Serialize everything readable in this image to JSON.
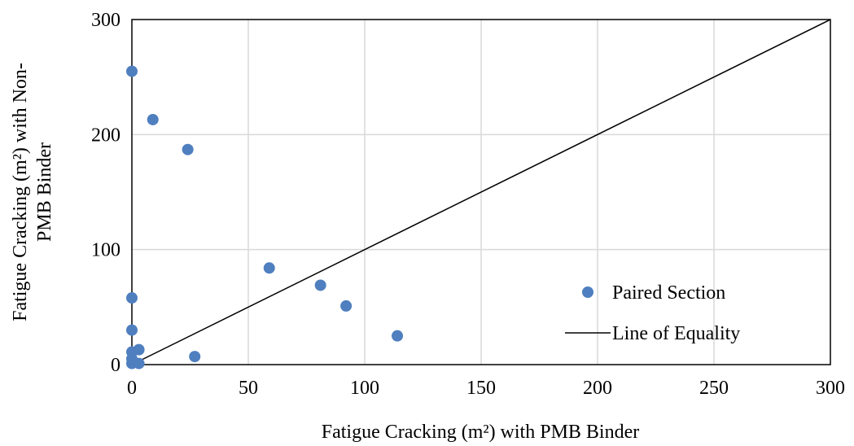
{
  "chart_data": {
    "type": "scatter",
    "xlabel": "Fatigue Cracking (m²) with PMB Binder",
    "ylabel_lines": [
      "Fatigue Cracking (m²) with Non-",
      "PMB Binder"
    ],
    "xlim": [
      0,
      300
    ],
    "ylim": [
      0,
      300
    ],
    "x_ticks": [
      0,
      50,
      100,
      150,
      200,
      250,
      300
    ],
    "y_ticks": [
      0,
      100,
      200,
      300
    ],
    "grid": true,
    "legend_position": "right",
    "series": [
      {
        "name": "Paired Section",
        "kind": "scatter",
        "color": "#4f7fbf",
        "points": [
          {
            "x": 0,
            "y": 255
          },
          {
            "x": 9,
            "y": 213
          },
          {
            "x": 24,
            "y": 187
          },
          {
            "x": 0,
            "y": 58
          },
          {
            "x": 0,
            "y": 30
          },
          {
            "x": 0,
            "y": 11
          },
          {
            "x": 3,
            "y": 13
          },
          {
            "x": 0,
            "y": 5
          },
          {
            "x": 0,
            "y": 1
          },
          {
            "x": 3,
            "y": 1
          },
          {
            "x": 27,
            "y": 7
          },
          {
            "x": 59,
            "y": 84
          },
          {
            "x": 81,
            "y": 69
          },
          {
            "x": 92,
            "y": 51
          },
          {
            "x": 114,
            "y": 25
          }
        ]
      },
      {
        "name": "Line of Equality",
        "kind": "line",
        "color": "#000000",
        "points": [
          {
            "x": 0,
            "y": 0
          },
          {
            "x": 300,
            "y": 300
          }
        ]
      }
    ]
  }
}
